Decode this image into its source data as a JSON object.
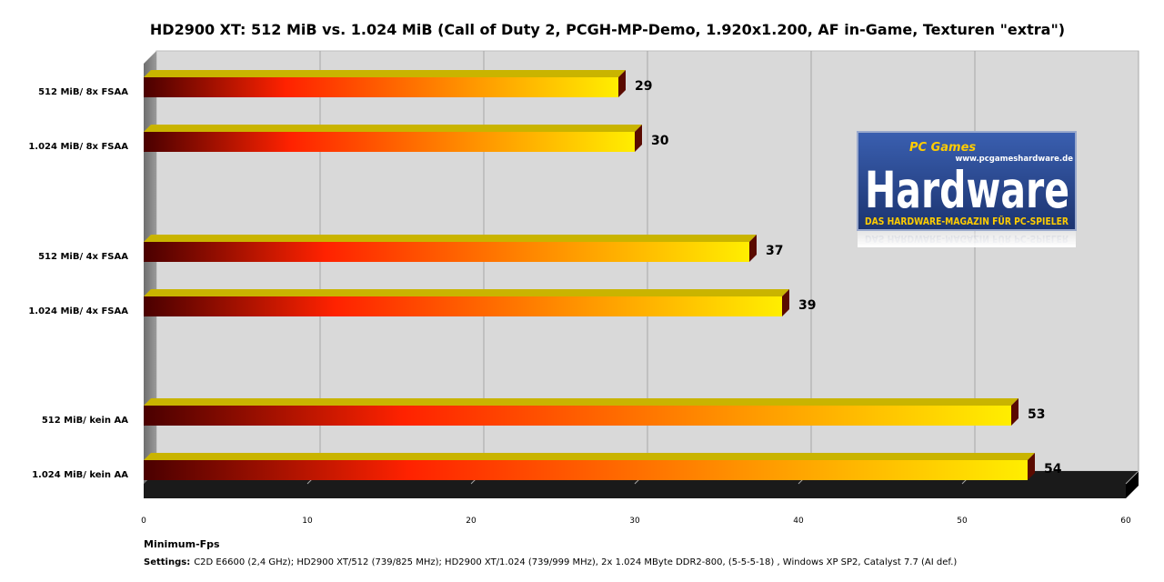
{
  "chart_data": {
    "type": "bar",
    "orientation": "horizontal",
    "title": "HD2900 XT: 512 MiB vs. 1.024 MiB (Call of Duty 2, PCGH-MP-Demo, 1.920x1.200, AF in-Game, Texturen \"extra\")",
    "categories": [
      "512 MiB/ 8x FSAA",
      "1.024 MiB/ 8x FSAA",
      "512 MiB/ 4x FSAA",
      "1.024 MiB/ 4x FSAA",
      "512 MiB/ kein AA",
      "1.024 MiB/ kein AA"
    ],
    "values": [
      29,
      30,
      37,
      39,
      53,
      54
    ],
    "groups": [
      [
        0,
        1
      ],
      [
        2,
        3
      ],
      [
        4,
        5
      ]
    ],
    "xlabel": "Minimum-Fps",
    "xlim": [
      0,
      60
    ],
    "xticks": [
      0,
      10,
      20,
      30,
      40,
      50,
      60
    ],
    "grid": true,
    "legend": "none",
    "colors": {
      "bar_start": "#4a0000",
      "bar_mid": "#ff2200",
      "bar_orange": "#ff9900",
      "bar_end": "#ffee00",
      "plot_bg": "#d9d9d9",
      "grid": "#a6a6a6",
      "floor": "#1a1a1a"
    }
  },
  "settings": {
    "label": "Settings:",
    "text": "C2D E6600 (2,4 GHz); HD2900 XT/512 (739/825 MHz); HD2900 XT/1.024 (739/999 MHz), 2x 1.024 MByte DDR2-800, (5-5-5-18) , Windows XP SP2, Catalyst 7.7 (AI def.)"
  },
  "logo": {
    "brand_top": "PC Games",
    "brand_main": "Hardware",
    "url": "www.pcgameshardware.de",
    "tagline": "DAS HARDWARE-MAGAZIN FÜR PC-SPIELER"
  }
}
